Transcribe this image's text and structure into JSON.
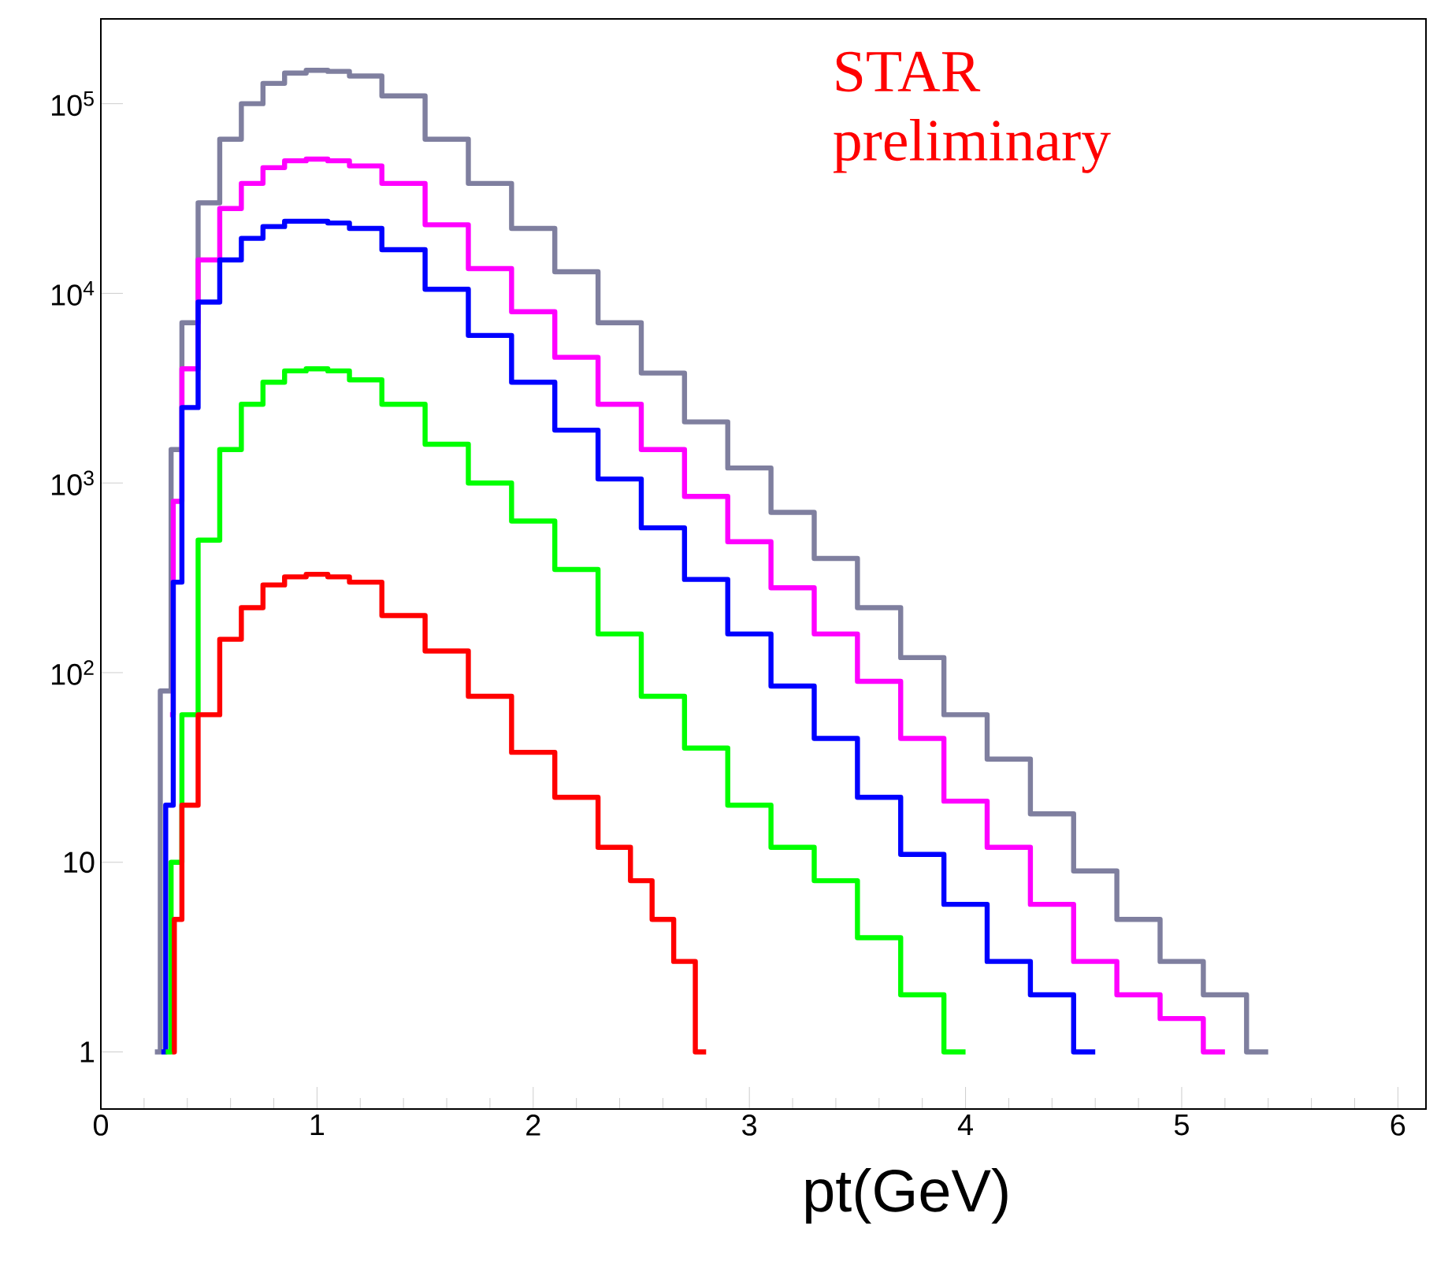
{
  "chart_data": {
    "type": "step",
    "xlabel": "pt(GeV)",
    "annotations": [
      "STAR preliminary"
    ],
    "log": "y",
    "xlim": [
      0,
      6.13
    ],
    "ylim": [
      0.5,
      280000
    ],
    "xticks": [
      0,
      1,
      2,
      3,
      4,
      5,
      6
    ],
    "yticks": [
      1,
      10,
      {
        "value": 100,
        "label": "10$^{2}$"
      },
      {
        "value": 1000,
        "label": "10$^{3}$"
      },
      {
        "value": 10000,
        "label": "10$^{4}$"
      },
      {
        "value": 100000,
        "label": "10$^{5}$"
      }
    ],
    "series": [
      {
        "color": "#7f7f9f",
        "x": [
          0.25,
          0.3,
          0.35,
          0.4,
          0.5,
          0.6,
          0.7,
          0.8,
          0.9,
          1.0,
          1.1,
          1.2,
          1.4,
          1.6,
          1.8,
          2.0,
          2.2,
          2.4,
          2.6,
          2.8,
          3.0,
          3.2,
          3.4,
          3.6,
          3.8,
          4.0,
          4.2,
          4.4,
          4.6,
          4.8,
          5.0,
          5.2,
          5.4
        ],
        "values": [
          1,
          80,
          1500,
          7000,
          30000,
          65000,
          100000,
          128000,
          145000,
          150000,
          148000,
          140000,
          110000,
          65000,
          38000,
          22000,
          13000,
          7000,
          3800,
          2100,
          1200,
          700,
          400,
          220,
          120,
          60,
          35,
          18,
          9,
          5,
          3,
          2,
          1
        ]
      },
      {
        "color": "#ff00ff",
        "x": [
          0.32,
          0.35,
          0.4,
          0.5,
          0.6,
          0.7,
          0.8,
          0.9,
          1.0,
          1.1,
          1.2,
          1.4,
          1.6,
          1.8,
          2.0,
          2.2,
          2.4,
          2.6,
          2.8,
          3.0,
          3.2,
          3.4,
          3.6,
          3.8,
          4.0,
          4.2,
          4.4,
          4.6,
          4.8,
          5.0,
          5.2
        ],
        "values": [
          60,
          800,
          4000,
          15000,
          28000,
          38000,
          46000,
          50000,
          51000,
          50000,
          47000,
          38000,
          23000,
          13500,
          8000,
          4600,
          2600,
          1500,
          850,
          490,
          280,
          160,
          90,
          45,
          21,
          12,
          6,
          3,
          2,
          1.5,
          1
        ]
      },
      {
        "color": "#0000ff",
        "x": [
          0.28,
          0.32,
          0.35,
          0.4,
          0.5,
          0.6,
          0.7,
          0.8,
          0.9,
          1.0,
          1.1,
          1.2,
          1.4,
          1.6,
          1.8,
          2.0,
          2.2,
          2.4,
          2.6,
          2.8,
          3.0,
          3.2,
          3.4,
          3.6,
          3.8,
          4.0,
          4.2,
          4.4,
          4.6
        ],
        "values": [
          1,
          20,
          300,
          2500,
          9000,
          15000,
          19500,
          22500,
          24000,
          24000,
          23500,
          22000,
          17000,
          10500,
          6000,
          3400,
          1900,
          1050,
          580,
          310,
          160,
          85,
          45,
          22,
          11,
          6,
          3,
          2,
          1
        ]
      },
      {
        "color": "#00ff00",
        "x": [
          0.3,
          0.35,
          0.4,
          0.5,
          0.6,
          0.7,
          0.8,
          0.9,
          1.0,
          1.1,
          1.2,
          1.4,
          1.6,
          1.8,
          2.0,
          2.2,
          2.4,
          2.6,
          2.8,
          3.0,
          3.2,
          3.4,
          3.6,
          3.8,
          4.0
        ],
        "values": [
          1,
          10,
          60,
          500,
          1500,
          2600,
          3400,
          3900,
          4000,
          3900,
          3500,
          2600,
          1600,
          1000,
          630,
          350,
          160,
          75,
          40,
          20,
          12,
          8,
          4,
          2,
          1
        ]
      },
      {
        "color": "#ff0000",
        "x": [
          0.33,
          0.35,
          0.4,
          0.5,
          0.6,
          0.7,
          0.8,
          0.9,
          1.0,
          1.1,
          1.2,
          1.4,
          1.6,
          1.8,
          2.0,
          2.2,
          2.4,
          2.5,
          2.6,
          2.7,
          2.8
        ],
        "values": [
          1,
          5,
          20,
          60,
          150,
          220,
          290,
          320,
          330,
          320,
          300,
          200,
          130,
          75,
          38,
          22,
          12,
          8,
          5,
          3,
          1
        ]
      }
    ]
  }
}
